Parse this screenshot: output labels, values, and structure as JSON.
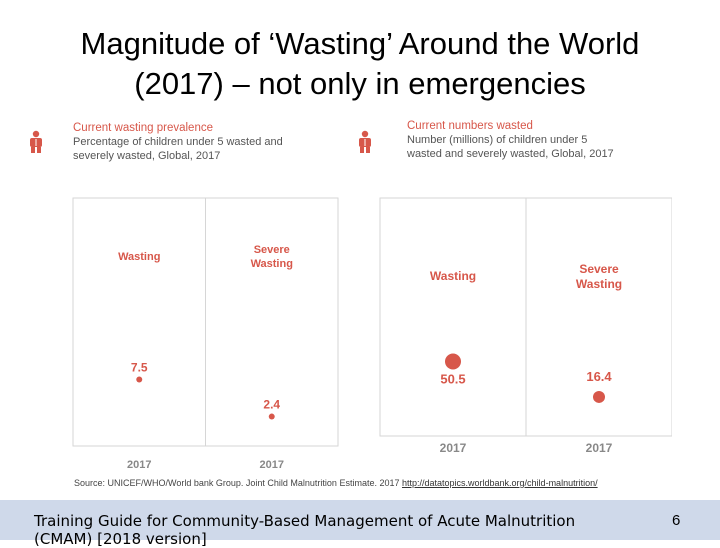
{
  "slide": {
    "title_line1": "Magnitude of ‘Wasting’ Around the World",
    "title_line2": "(2017) – not only in emergencies"
  },
  "left_panel": {
    "heading": "Current wasting prevalence",
    "desc_line1": "Percentage of children under 5 wasted and",
    "desc_line2": "severely wasted, Global, 2017"
  },
  "right_panel": {
    "heading": "Current numbers wasted",
    "desc_line1": "Number (millions) of children under 5",
    "desc_line2": "wasted and severely wasted, Global, 2017"
  },
  "chart_data": [
    {
      "type": "scatter",
      "categories": [
        [
          "Wasting"
        ],
        [
          "Severe",
          "Wasting"
        ]
      ],
      "x": [
        "2017",
        "2017"
      ],
      "values": [
        7.5,
        2.4
      ],
      "value_labels": [
        "7.5",
        "2.4"
      ],
      "title": "Current wasting prevalence",
      "xlabel": "",
      "ylabel": "",
      "ylim": [
        0,
        30
      ],
      "color": "#d7574a",
      "grid": false
    },
    {
      "type": "scatter",
      "categories": [
        [
          "Wasting"
        ],
        [
          "Severe",
          "Wasting"
        ]
      ],
      "x": [
        "2017",
        "2017"
      ],
      "values": [
        50.5,
        16.4
      ],
      "value_labels": [
        "50.5",
        "16.4"
      ],
      "title": "Current numbers wasted",
      "xlabel": "",
      "ylabel": "",
      "ylim": [
        0,
        200
      ],
      "color": "#d7574a",
      "grid": false
    }
  ],
  "source": {
    "label": "Source:",
    "text": " UNICEF/WHO/World bank Group. Joint Child Malnutrition Estimate. 2017 ",
    "link": "http://datatopics.worldbank.org/child-malnutrition/"
  },
  "footer": {
    "text": "Training Guide for Community-Based Management of Acute Malnutrition (CMAM) [2018 version]",
    "page": "6"
  }
}
